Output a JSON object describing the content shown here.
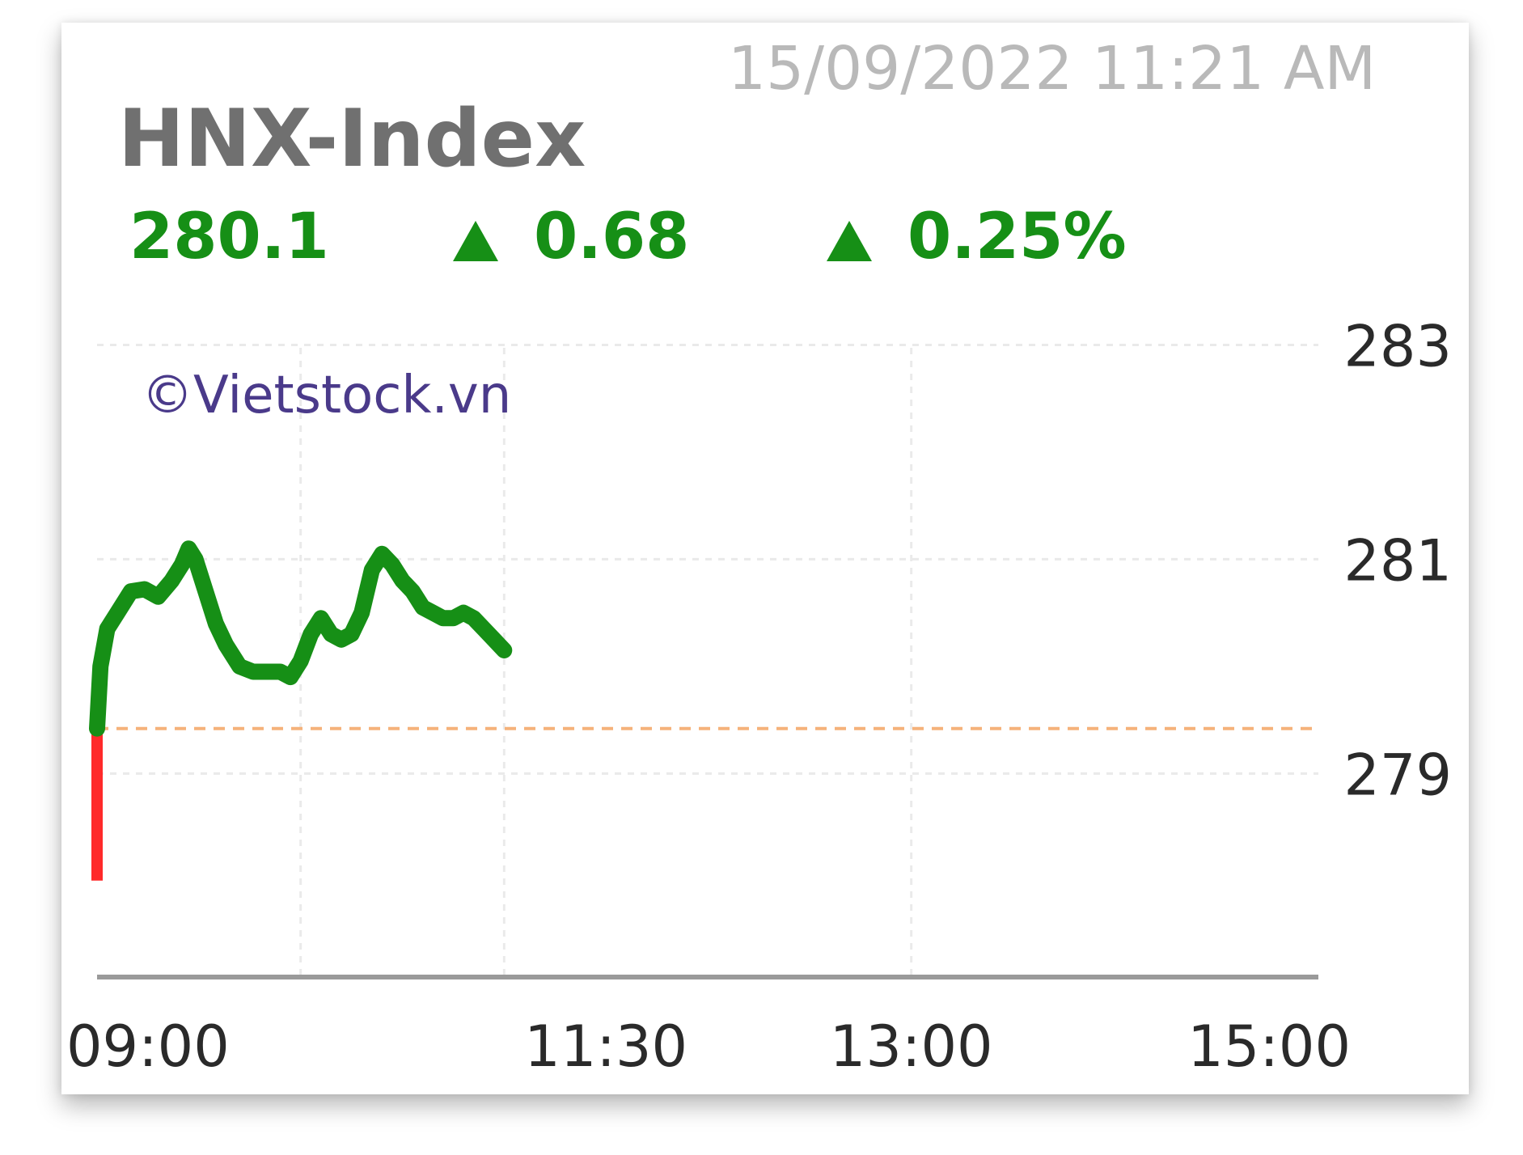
{
  "header": {
    "timestamp": "15/09/2022 11:21 AM",
    "index_name": "HNX-Index",
    "value": "280.1",
    "change": "0.68",
    "change_pct": "0.25%"
  },
  "watermark": "©Vietstock.vn",
  "colors": {
    "up": "#168f16",
    "down": "#ff2a2a",
    "reference": "#f5b27a",
    "grid": "#eaeaea",
    "axis": "#9a9a9a"
  },
  "chart_data": {
    "type": "line",
    "title": "HNX-Index",
    "xlabel": "",
    "ylabel": "",
    "x_ticks": [
      "09:00",
      "11:30",
      "13:00",
      "15:00"
    ],
    "y_ticks": [
      283,
      281,
      279
    ],
    "ylim": [
      277.1,
      283.2
    ],
    "reference_value": 279.42,
    "opening_dip": {
      "time": "09:00",
      "from": 279.42,
      "to": 278.0
    },
    "grid": true,
    "series": [
      {
        "color": "#168f16",
        "points": [
          [
            "09:00",
            279.42
          ],
          [
            "09:01",
            280.0
          ],
          [
            "09:03",
            280.35
          ],
          [
            "09:06",
            280.5
          ],
          [
            "09:10",
            280.7
          ],
          [
            "09:14",
            280.72
          ],
          [
            "09:18",
            280.65
          ],
          [
            "09:22",
            280.8
          ],
          [
            "09:25",
            280.95
          ],
          [
            "09:27",
            281.1
          ],
          [
            "09:29",
            281.0
          ],
          [
            "09:32",
            280.7
          ],
          [
            "09:35",
            280.4
          ],
          [
            "09:38",
            280.2
          ],
          [
            "09:42",
            280.0
          ],
          [
            "09:46",
            279.95
          ],
          [
            "09:50",
            279.95
          ],
          [
            "09:54",
            279.95
          ],
          [
            "09:57",
            279.9
          ],
          [
            "10:00",
            280.05
          ],
          [
            "10:03",
            280.3
          ],
          [
            "10:06",
            280.45
          ],
          [
            "10:09",
            280.3
          ],
          [
            "10:12",
            280.25
          ],
          [
            "10:15",
            280.3
          ],
          [
            "10:18",
            280.5
          ],
          [
            "10:21",
            280.9
          ],
          [
            "10:24",
            281.05
          ],
          [
            "10:27",
            280.95
          ],
          [
            "10:30",
            280.8
          ],
          [
            "10:33",
            280.7
          ],
          [
            "10:36",
            280.55
          ],
          [
            "10:39",
            280.5
          ],
          [
            "10:42",
            280.45
          ],
          [
            "10:45",
            280.45
          ],
          [
            "10:48",
            280.5
          ],
          [
            "10:51",
            280.45
          ],
          [
            "10:54",
            280.35
          ],
          [
            "10:57",
            280.25
          ],
          [
            "11:00",
            280.15
          ]
        ]
      }
    ]
  }
}
